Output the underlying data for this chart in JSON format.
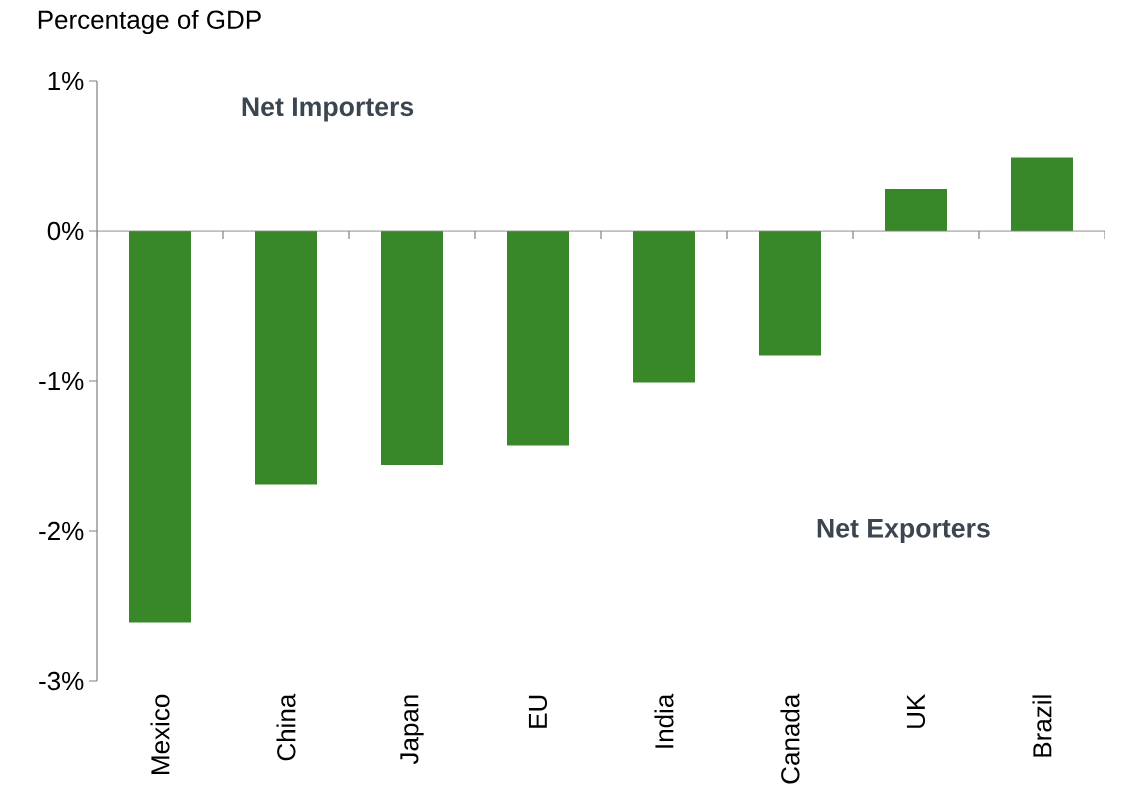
{
  "chart_data": {
    "type": "bar",
    "ylabel": "Percentage of GDP",
    "categories": [
      "Mexico",
      "China",
      "Japan",
      "EU",
      "India",
      "Canada",
      "UK",
      "Brazil"
    ],
    "values": [
      -2.61,
      -1.69,
      -1.56,
      -1.43,
      -1.01,
      -0.83,
      0.28,
      0.49
    ],
    "color": "#38882a",
    "ylim": [
      -3,
      1
    ],
    "yticks": [
      {
        "value": -3,
        "label": "-3%"
      },
      {
        "value": -2,
        "label": "-2%"
      },
      {
        "value": -1,
        "label": "-1%"
      },
      {
        "value": 0,
        "label": "0%"
      },
      {
        "value": 1,
        "label": "1%"
      }
    ],
    "annotations": [
      "Net Importers",
      "Net Exporters"
    ]
  }
}
